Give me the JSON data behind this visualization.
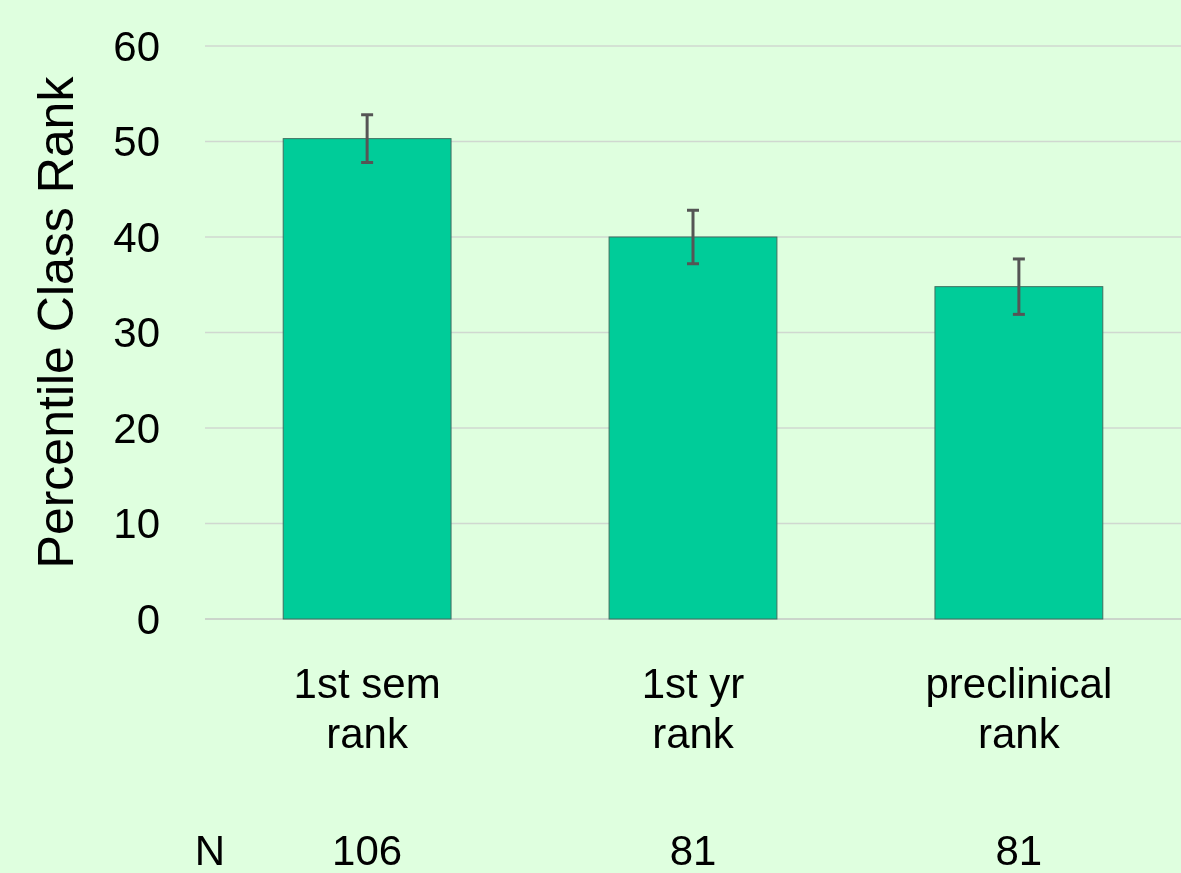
{
  "chart_data": {
    "type": "bar",
    "ylabel": "Percentile Class Rank",
    "categories": [
      "1st sem rank",
      "1st yr rank",
      "preclinical rank"
    ],
    "values": [
      50.3,
      40.0,
      34.8
    ],
    "errors": [
      2.5,
      2.8,
      2.9
    ],
    "color": "#00cc99",
    "ylim": [
      0,
      60
    ],
    "yticks": [
      0,
      10,
      20,
      30,
      40,
      50,
      60
    ],
    "grid": "y",
    "annotations": [
      "N",
      "106",
      "81",
      "81"
    ]
  }
}
